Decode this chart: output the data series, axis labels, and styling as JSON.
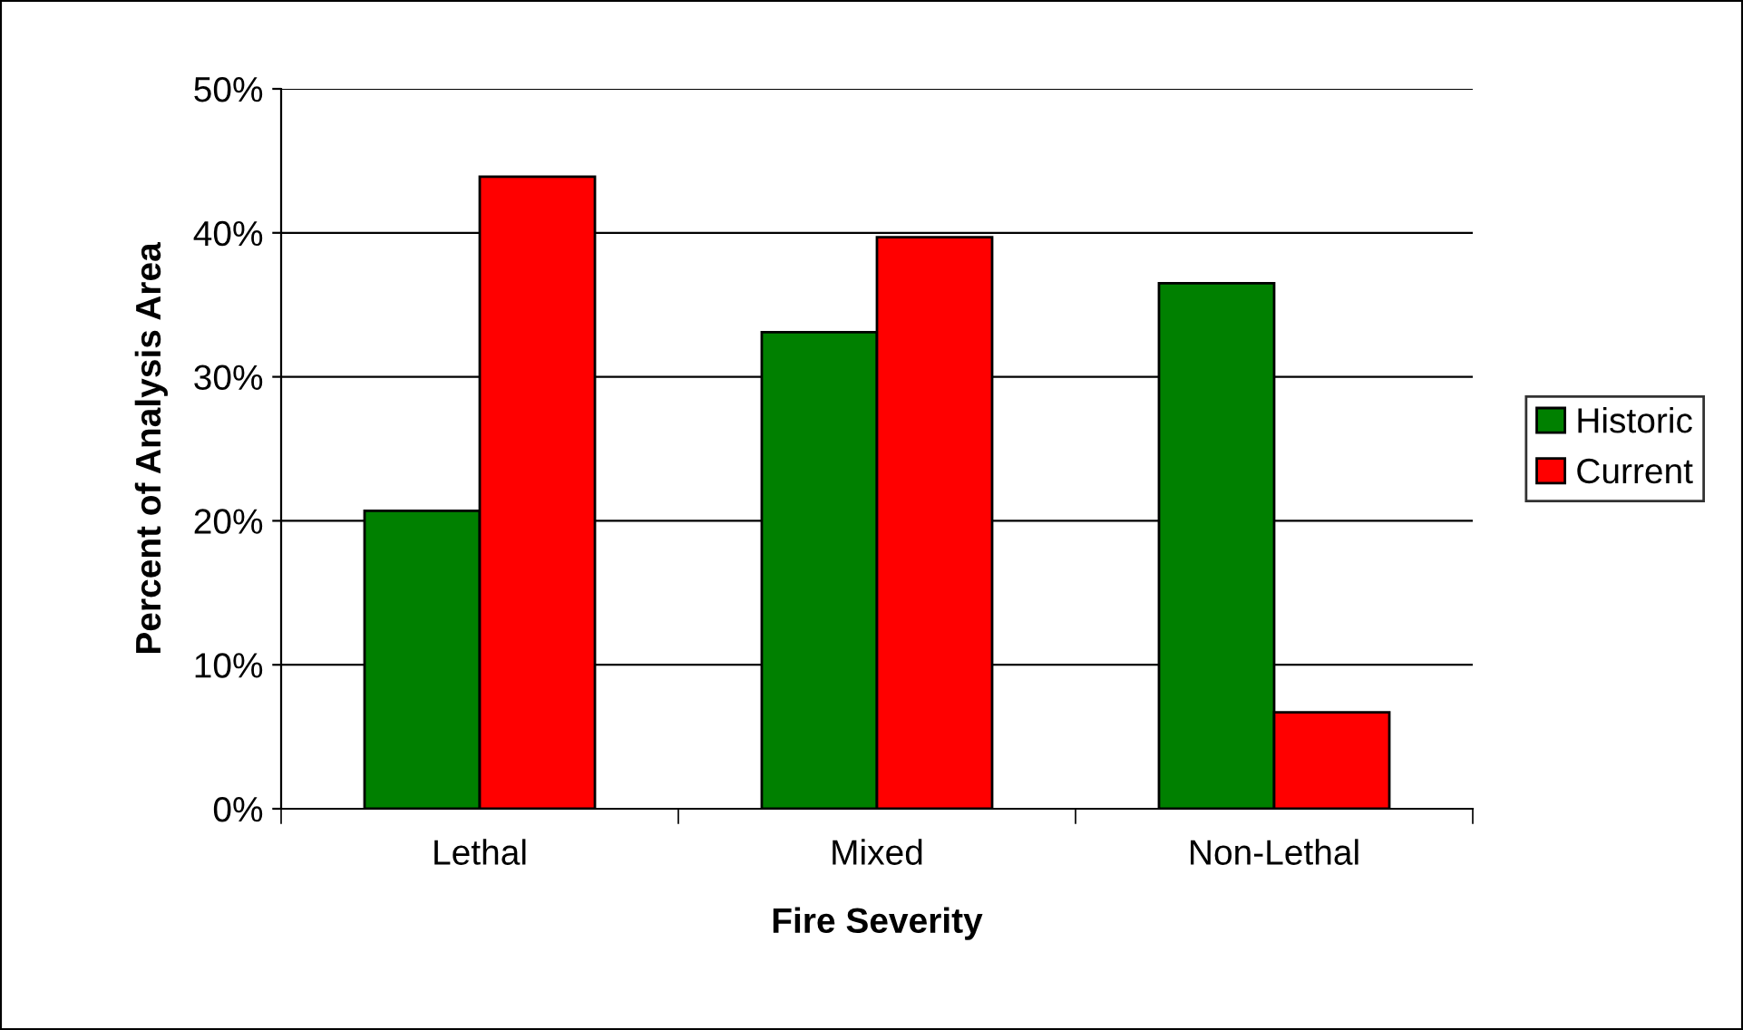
{
  "chart_data": {
    "type": "bar",
    "xlabel": "Fire Severity",
    "ylabel": "Percent of Analysis Area",
    "categories": [
      "Lethal",
      "Mixed",
      "Non-Lethal"
    ],
    "series": [
      {
        "name": "Historic",
        "color": "#008000",
        "values": [
          20.7,
          33.1,
          36.5
        ]
      },
      {
        "name": "Current",
        "color": "#ff0000",
        "values": [
          43.9,
          39.7,
          6.7
        ]
      }
    ],
    "ylim": [
      0,
      50
    ],
    "yticks": [
      {
        "value": 0,
        "label": "0%"
      },
      {
        "value": 10,
        "label": "10%"
      },
      {
        "value": 20,
        "label": "20%"
      },
      {
        "value": 30,
        "label": "30%"
      },
      {
        "value": 40,
        "label": "40%"
      },
      {
        "value": 50,
        "label": "50%"
      }
    ],
    "grid": "y",
    "legend": "right"
  }
}
